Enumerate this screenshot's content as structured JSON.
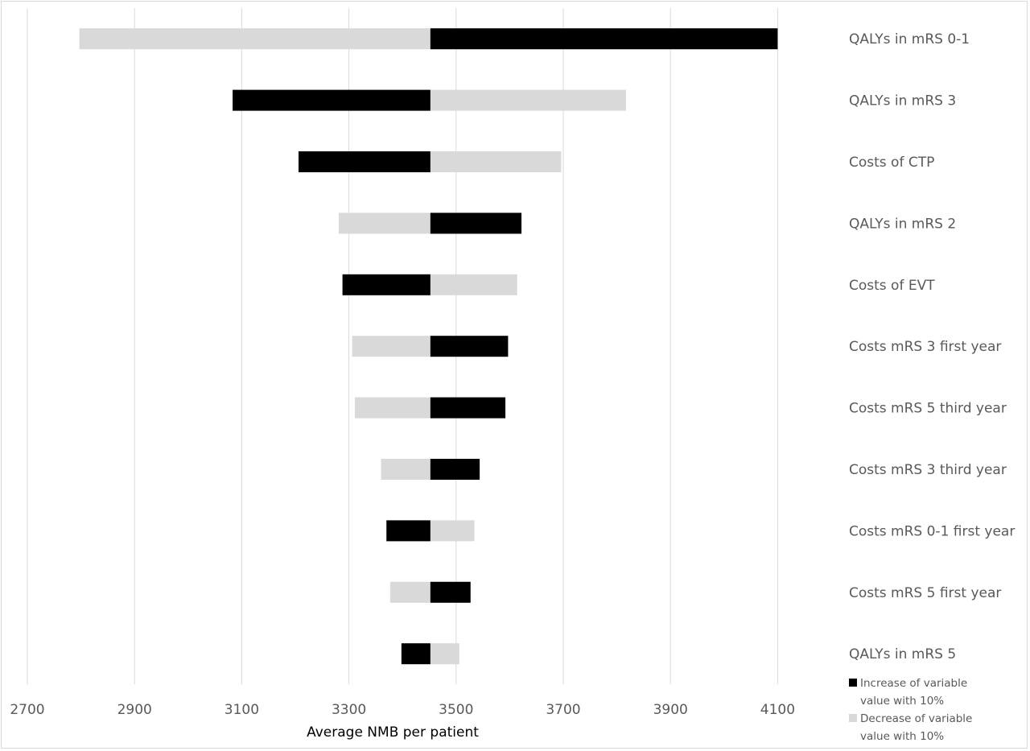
{
  "chart_data": {
    "type": "bar",
    "orientation": "horizontal-tornado",
    "baseline": 3452,
    "xlabel": "Average NMB per patient",
    "xlim": [
      2650,
      4180
    ],
    "xticks": [
      2700,
      2900,
      3100,
      3300,
      3500,
      3700,
      3900,
      4100
    ],
    "grid": true,
    "categories": [
      "QALYs in mRS 0-1",
      "QALYs in mRS 3",
      "Costs of CTP",
      "QALYs in mRS 2",
      "Costs of EVT",
      "Costs mRS 3 first year",
      "Costs mRS 5 third year",
      "Costs mRS 3 third year",
      "Costs mRS 0-1 first year",
      "Costs mRS 5 first year",
      "QALYs in mRS 5"
    ],
    "series": [
      {
        "name": "Increase of variable value with 10%",
        "color": "#000000",
        "values": [
          4100,
          3083,
          3206,
          3622,
          3288,
          3597,
          3592,
          3544,
          3370,
          3527,
          3398
        ]
      },
      {
        "name": "Decrease of variable value with 10%",
        "color": "#d9d9d9",
        "values": [
          2797,
          3817,
          3696,
          3281,
          3614,
          3306,
          3311,
          3360,
          3534,
          3377,
          3506
        ]
      }
    ],
    "legend": {
      "placement": "bottom-right",
      "entries": [
        {
          "color": "#000000",
          "line1": "Increase of variable",
          "line2": "value with 10%"
        },
        {
          "color": "#d9d9d9",
          "line1": "Decrease of variable",
          "line2": "value with 10%"
        }
      ]
    }
  }
}
